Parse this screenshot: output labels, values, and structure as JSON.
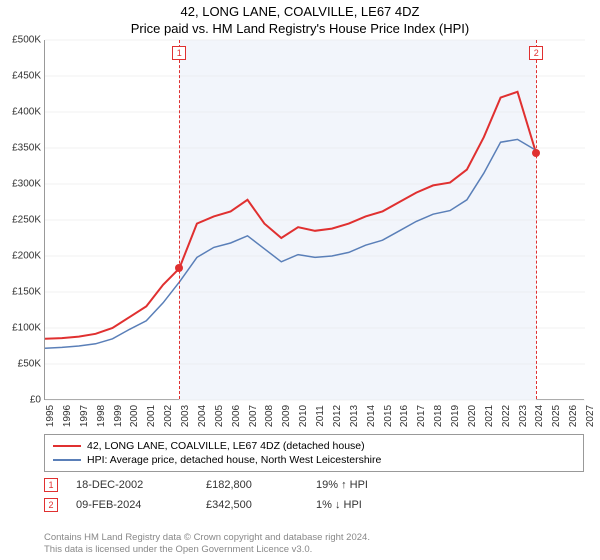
{
  "title": {
    "main": "42, LONG LANE, COALVILLE, LE67 4DZ",
    "sub": "Price paid vs. HM Land Registry's House Price Index (HPI)"
  },
  "chart": {
    "type": "line",
    "background_color": "#ffffff",
    "plot_shade_color": "#f2f5fb",
    "grid_color": "#e5e5e5",
    "axis_color": "#999999",
    "label_fontsize": 10,
    "ylim": [
      0,
      500000
    ],
    "ytick_step": 50000,
    "ytick_prefix": "£",
    "ytick_labels": [
      "£0",
      "£50K",
      "£100K",
      "£150K",
      "£200K",
      "£250K",
      "£300K",
      "£350K",
      "£400K",
      "£450K",
      "£500K"
    ],
    "xlim": [
      1995,
      2027
    ],
    "xtick_step": 1,
    "xtick_labels": [
      "1995",
      "1996",
      "1997",
      "1998",
      "1999",
      "2000",
      "2001",
      "2002",
      "2003",
      "2004",
      "2005",
      "2006",
      "2007",
      "2008",
      "2009",
      "2010",
      "2011",
      "2012",
      "2013",
      "2014",
      "2015",
      "2016",
      "2017",
      "2018",
      "2019",
      "2020",
      "2021",
      "2022",
      "2023",
      "2024",
      "2025",
      "2026",
      "2027"
    ],
    "series": [
      {
        "id": "price_paid",
        "label": "42, LONG LANE, COALVILLE, LE67 4DZ (detached house)",
        "color": "#e03030",
        "line_width": 2,
        "x": [
          1995,
          1996,
          1997,
          1998,
          1999,
          2000,
          2001,
          2002,
          2002.96,
          2003.5,
          2004,
          2005,
          2006,
          2007,
          2008,
          2009,
          2010,
          2011,
          2012,
          2013,
          2014,
          2015,
          2016,
          2017,
          2018,
          2019,
          2020,
          2021,
          2022,
          2023,
          2024.11
        ],
        "y": [
          85000,
          86000,
          88000,
          92000,
          100000,
          115000,
          130000,
          160000,
          182800,
          215000,
          245000,
          255000,
          262000,
          278000,
          245000,
          225000,
          240000,
          235000,
          238000,
          245000,
          255000,
          262000,
          275000,
          288000,
          298000,
          302000,
          320000,
          365000,
          420000,
          428000,
          342500
        ]
      },
      {
        "id": "hpi",
        "label": "HPI: Average price, detached house, North West Leicestershire",
        "color": "#5a7fb8",
        "line_width": 1.5,
        "x": [
          1995,
          1996,
          1997,
          1998,
          1999,
          2000,
          2001,
          2002,
          2003,
          2004,
          2005,
          2006,
          2007,
          2008,
          2009,
          2010,
          2011,
          2012,
          2013,
          2014,
          2015,
          2016,
          2017,
          2018,
          2019,
          2020,
          2021,
          2022,
          2023,
          2024
        ],
        "y": [
          72000,
          73000,
          75000,
          78000,
          85000,
          98000,
          110000,
          135000,
          165000,
          198000,
          212000,
          218000,
          228000,
          210000,
          192000,
          202000,
          198000,
          200000,
          205000,
          215000,
          222000,
          235000,
          248000,
          258000,
          263000,
          278000,
          315000,
          358000,
          362000,
          348000
        ]
      }
    ],
    "shade_x_range": [
      2002.96,
      2024.11
    ],
    "sale_points": [
      {
        "index": 1,
        "x": 2002.96,
        "y": 182800,
        "color": "#e03030"
      },
      {
        "index": 2,
        "x": 2024.11,
        "y": 342500,
        "color": "#e03030"
      }
    ]
  },
  "legend": {
    "items": [
      {
        "color": "#e03030",
        "label": "42, LONG LANE, COALVILLE, LE67 4DZ (detached house)"
      },
      {
        "color": "#5a7fb8",
        "label": "HPI: Average price, detached house, North West Leicestershire"
      }
    ]
  },
  "sales": [
    {
      "index": "1",
      "date": "18-DEC-2002",
      "price": "£182,800",
      "diff": "19% ↑ HPI"
    },
    {
      "index": "2",
      "date": "09-FEB-2024",
      "price": "£342,500",
      "diff": "1% ↓ HPI"
    }
  ],
  "attribution": {
    "line1": "Contains HM Land Registry data © Crown copyright and database right 2024.",
    "line2": "This data is licensed under the Open Government Licence v3.0."
  }
}
